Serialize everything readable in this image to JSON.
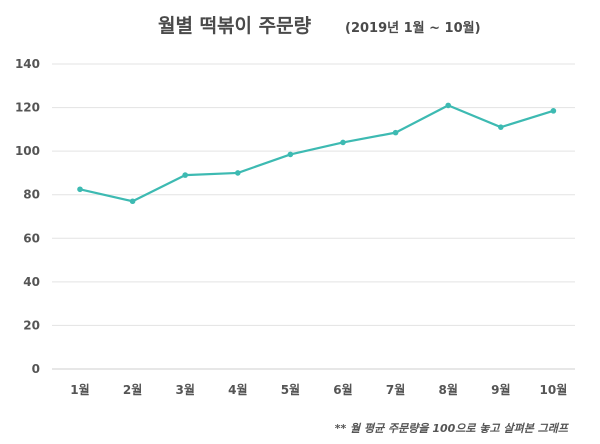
{
  "chart_data": {
    "type": "line",
    "title": "월별 떡볶이 주문량",
    "subtitle": "(2019년 1월 ~ 10월)",
    "categories": [
      "1월",
      "2월",
      "3월",
      "4월",
      "5월",
      "6월",
      "7월",
      "8월",
      "9월",
      "10월"
    ],
    "series": [
      {
        "values": [
          82.5,
          77,
          89,
          90,
          98.5,
          104,
          108.5,
          121,
          111,
          118.5
        ]
      }
    ],
    "ylim": [
      0,
      140
    ],
    "yticks": [
      "0",
      "20",
      "40",
      "60",
      "80",
      "100",
      "120",
      "140"
    ],
    "grid": true,
    "legend": "none",
    "footnote": "** 월 평균 주문량을 100으로 놓고 살펴본 그래프",
    "colors": {
      "line": "#3dbab2",
      "grid": "#e3e3e3",
      "text": "#555555"
    }
  }
}
